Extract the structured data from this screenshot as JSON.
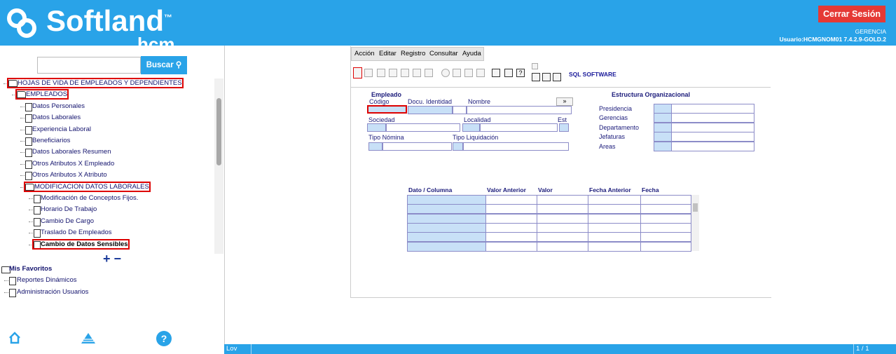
{
  "header": {
    "logo": "Softland",
    "logo_mark": "™",
    "logo_sub": "hcm",
    "logout": "Cerrar Sesión",
    "role": "GERENCIA",
    "user": "Usuario:HCMGNOM01 7.4.2.9-GOLD.2"
  },
  "sidebar": {
    "search_button": "Buscar",
    "tree": [
      {
        "label": "HOJAS DE VIDA DE EMPLEADOS Y DEPENDIENTES",
        "level": 0,
        "folder": true,
        "selected": true
      },
      {
        "label": "EMPLEADOS",
        "level": 1,
        "folder": true,
        "selected": true
      },
      {
        "label": "Datos Personales",
        "level": 2
      },
      {
        "label": "Datos Laborales",
        "level": 2
      },
      {
        "label": "Experiencia Laboral",
        "level": 2
      },
      {
        "label": "Beneficiarios",
        "level": 2
      },
      {
        "label": "Datos Laborales Resumen",
        "level": 2
      },
      {
        "label": "Otros Atributos X Empleado",
        "level": 2
      },
      {
        "label": "Otros Atributos X Atributo",
        "level": 2
      },
      {
        "label": "MODIFICACION DATOS LABORALES",
        "level": 2,
        "folder": true,
        "selected": true
      },
      {
        "label": "Modificación de Conceptos Fijos.",
        "level": 3
      },
      {
        "label": "Horario De Trabajo",
        "level": 3
      },
      {
        "label": "Cambio De Cargo",
        "level": 3
      },
      {
        "label": "Traslado De Empleados",
        "level": 3
      },
      {
        "label": "Cambio de Datos Sensibles",
        "level": 3,
        "selected": true,
        "bold": true
      }
    ],
    "favorites": {
      "title": "Mis Favoritos",
      "items": [
        "Reportes Dinámicos",
        "Administración Usuarios"
      ]
    }
  },
  "form": {
    "menu": [
      "Acción",
      "Editar",
      "Registro",
      "Consultar",
      "Ayuda"
    ],
    "toolbar_label": "SQL SOFTWARE",
    "employee": {
      "title": "Empleado",
      "codigo": "Código",
      "documento": "Docu. Identidad",
      "nombre": "Nombre",
      "sociedad": "Sociedad",
      "localidad": "Localidad",
      "est": "Est",
      "tipo_nomina": "Tipo Nómina",
      "tipo_liquidacion": "Tipo Liquidación"
    },
    "org": {
      "title": "Estructura Organizacional",
      "levels": [
        "Presidencia",
        "Gerencias",
        "Departamento",
        "Jefaturas",
        "Areas"
      ]
    },
    "table": {
      "headers": [
        "Dato / Columna",
        "Valor Anterior",
        "Valor",
        "Fecha Anterior",
        "Fecha"
      ]
    }
  },
  "status": {
    "left": "Lov",
    "right": "1 / 1"
  }
}
